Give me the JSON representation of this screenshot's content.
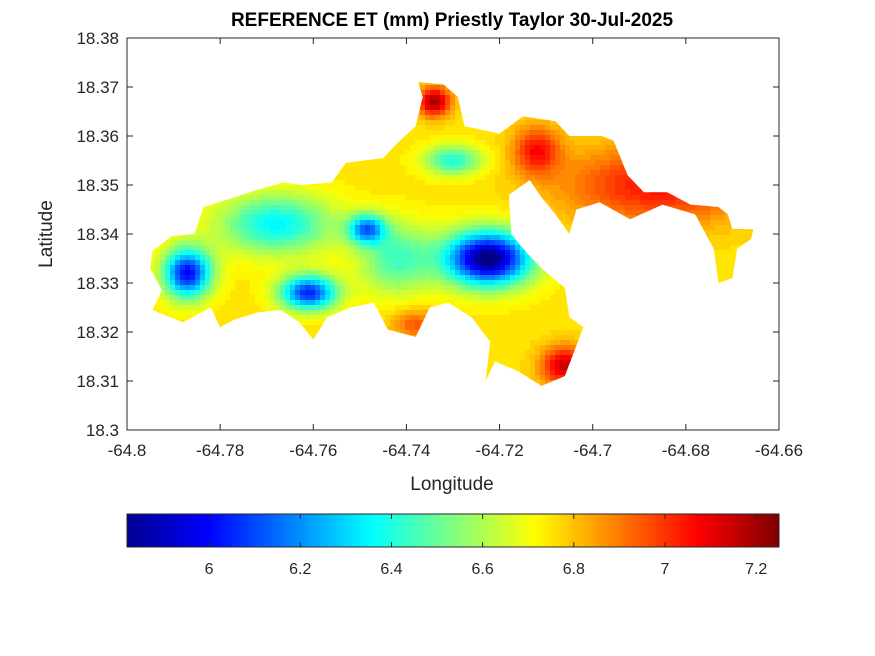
{
  "chart_data": {
    "type": "heatmap",
    "title": "REFERENCE ET (mm) Priestly Taylor 30-Jul-2025",
    "xlabel": "Longitude",
    "ylabel": "Latitude",
    "xlim": [
      -64.8,
      -64.66
    ],
    "ylim": [
      18.3,
      18.38
    ],
    "x_ticks": [
      "-64.8",
      "-64.78",
      "-64.76",
      "-64.74",
      "-64.72",
      "-64.7",
      "-64.68",
      "-64.66"
    ],
    "y_ticks": [
      "18.3",
      "18.31",
      "18.32",
      "18.33",
      "18.34",
      "18.35",
      "18.36",
      "18.37",
      "18.38"
    ],
    "colormap": "jet",
    "colorbar": {
      "orientation": "horizontal",
      "location": "bottom",
      "range": [
        5.82,
        7.25
      ],
      "ticks": [
        "6",
        "6.2",
        "6.4",
        "6.6",
        "6.8",
        "7",
        "7.2"
      ]
    },
    "outline": [
      [
        -64.7945,
        18.3365
      ],
      [
        -64.7905,
        18.3395
      ],
      [
        -64.7855,
        18.34
      ],
      [
        -64.7835,
        18.3455
      ],
      [
        -64.7785,
        18.347
      ],
      [
        -64.772,
        18.349
      ],
      [
        -64.7665,
        18.3505
      ],
      [
        -64.7625,
        18.35
      ],
      [
        -64.756,
        18.3505
      ],
      [
        -64.753,
        18.3545
      ],
      [
        -64.745,
        18.3555
      ],
      [
        -64.742,
        18.3585
      ],
      [
        -64.738,
        18.362
      ],
      [
        -64.7365,
        18.368
      ],
      [
        -64.7375,
        18.371
      ],
      [
        -64.732,
        18.3705
      ],
      [
        -64.729,
        18.368
      ],
      [
        -64.7275,
        18.362
      ],
      [
        -64.72,
        18.3605
      ],
      [
        -64.715,
        18.364
      ],
      [
        -64.708,
        18.363
      ],
      [
        -64.705,
        18.36
      ],
      [
        -64.698,
        18.36
      ],
      [
        -64.6955,
        18.359
      ],
      [
        -64.6925,
        18.352
      ],
      [
        -64.689,
        18.3485
      ],
      [
        -64.684,
        18.3485
      ],
      [
        -64.679,
        18.346
      ],
      [
        -64.673,
        18.3455
      ],
      [
        -64.671,
        18.344
      ],
      [
        -64.67,
        18.341
      ],
      [
        -64.6655,
        18.341
      ],
      [
        -64.666,
        18.339
      ],
      [
        -64.669,
        18.337
      ],
      [
        -64.67,
        18.331
      ],
      [
        -64.673,
        18.33
      ],
      [
        -64.674,
        18.337
      ],
      [
        -64.678,
        18.344
      ],
      [
        -64.685,
        18.346
      ],
      [
        -64.692,
        18.343
      ],
      [
        -64.6985,
        18.3465
      ],
      [
        -64.7035,
        18.345
      ],
      [
        -64.705,
        18.34
      ],
      [
        -64.708,
        18.344
      ],
      [
        -64.711,
        18.3475
      ],
      [
        -64.7135,
        18.351
      ],
      [
        -64.718,
        18.348
      ],
      [
        -64.7175,
        18.34
      ],
      [
        -64.714,
        18.336
      ],
      [
        -64.711,
        18.333
      ],
      [
        -64.706,
        18.329
      ],
      [
        -64.705,
        18.323
      ],
      [
        -64.702,
        18.321
      ],
      [
        -64.704,
        18.316
      ],
      [
        -64.706,
        18.311
      ],
      [
        -64.711,
        18.309
      ],
      [
        -64.716,
        18.312
      ],
      [
        -64.721,
        18.314
      ],
      [
        -64.723,
        18.31
      ],
      [
        -64.722,
        18.318
      ],
      [
        -64.726,
        18.323
      ],
      [
        -64.731,
        18.326
      ],
      [
        -64.735,
        18.325
      ],
      [
        -64.738,
        18.319
      ],
      [
        -64.744,
        18.3205
      ],
      [
        -64.747,
        18.326
      ],
      [
        -64.752,
        18.325
      ],
      [
        -64.757,
        18.323
      ],
      [
        -64.76,
        18.3185
      ],
      [
        -64.763,
        18.322
      ],
      [
        -64.767,
        18.3245
      ],
      [
        -64.772,
        18.324
      ],
      [
        -64.777,
        18.3225
      ],
      [
        -64.78,
        18.321
      ],
      [
        -64.782,
        18.325
      ],
      [
        -64.788,
        18.322
      ],
      [
        -64.792,
        18.3235
      ],
      [
        -64.7945,
        18.3245
      ],
      [
        -64.7925,
        18.3285
      ],
      [
        -64.795,
        18.333
      ]
    ],
    "field": {
      "base_value": 6.75,
      "blobs": [
        {
          "lon": -64.7225,
          "lat": 18.335,
          "value": -0.95,
          "rx": 0.009,
          "ry": 0.0055
        },
        {
          "lon": -64.787,
          "lat": 18.332,
          "value": -0.75,
          "rx": 0.005,
          "ry": 0.005
        },
        {
          "lon": -64.761,
          "lat": 18.328,
          "value": -0.7,
          "rx": 0.006,
          "ry": 0.0035
        },
        {
          "lon": -64.7485,
          "lat": 18.341,
          "value": -0.55,
          "rx": 0.004,
          "ry": 0.003
        },
        {
          "lon": -64.768,
          "lat": 18.342,
          "value": -0.4,
          "rx": 0.012,
          "ry": 0.006
        },
        {
          "lon": -64.742,
          "lat": 18.335,
          "value": -0.3,
          "rx": 0.008,
          "ry": 0.007
        },
        {
          "lon": -64.73,
          "lat": 18.355,
          "value": -0.35,
          "rx": 0.006,
          "ry": 0.003
        },
        {
          "lon": -64.734,
          "lat": 18.367,
          "value": 0.45,
          "rx": 0.0035,
          "ry": 0.003
        },
        {
          "lon": -64.712,
          "lat": 18.357,
          "value": 0.3,
          "rx": 0.005,
          "ry": 0.005
        },
        {
          "lon": -64.706,
          "lat": 18.313,
          "value": 0.4,
          "rx": 0.005,
          "ry": 0.004
        },
        {
          "lon": -64.738,
          "lat": 18.3215,
          "value": 0.2,
          "rx": 0.005,
          "ry": 0.003
        },
        {
          "lon": -64.686,
          "lat": 18.35,
          "value": 0.3,
          "rx": 0.02,
          "ry": 0.008
        }
      ]
    }
  }
}
